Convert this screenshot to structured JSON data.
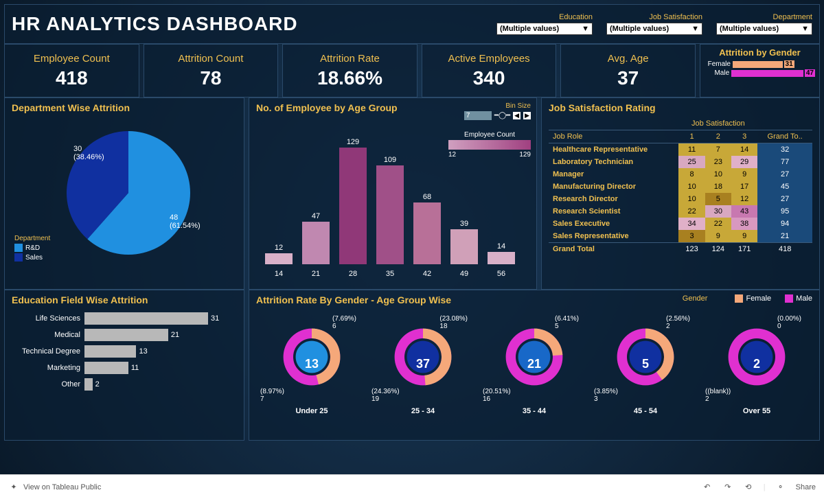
{
  "title": "HR ANALYTICS DASHBOARD",
  "filters": [
    {
      "label": "Education",
      "value": "(Multiple values)"
    },
    {
      "label": "Job Satisfaction",
      "value": "(Multiple values)"
    },
    {
      "label": "Department",
      "value": "(Multiple values)"
    }
  ],
  "kpis": [
    {
      "label": "Employee Count",
      "value": "418"
    },
    {
      "label": "Attrition Count",
      "value": "78"
    },
    {
      "label": "Attrition Rate",
      "value": "18.66%"
    },
    {
      "label": "Active Employees",
      "value": "340"
    },
    {
      "label": "Avg. Age",
      "value": "37"
    }
  ],
  "gender": {
    "title": "Attrition by Gender",
    "rows": [
      {
        "label": "Female",
        "value": 31,
        "color": "#f5a87a",
        "max": 47
      },
      {
        "label": "Male",
        "value": 47,
        "color": "#e030d0",
        "max": 47
      }
    ]
  },
  "pie": {
    "title": "Department Wise Attrition",
    "legend_title": "Department",
    "slices": [
      {
        "label": "R&D",
        "value": 48,
        "pct": "61.54%",
        "color": "#2090e0"
      },
      {
        "label": "Sales",
        "value": 30,
        "pct": "38.46%",
        "color": "#1030a0"
      }
    ]
  },
  "age_bars": {
    "title": "No. of Employee by Age Group",
    "bin_label": "Bin Size",
    "bin_value": "7",
    "legend_title": "Employee Count",
    "legend_min": "12",
    "legend_max": "129",
    "max": 129,
    "bars": [
      {
        "cat": "14",
        "value": 12,
        "color": "#d8b0c8"
      },
      {
        "cat": "21",
        "value": 47,
        "color": "#c088b0"
      },
      {
        "cat": "28",
        "value": 129,
        "color": "#903878"
      },
      {
        "cat": "35",
        "value": 109,
        "color": "#a05088"
      },
      {
        "cat": "42",
        "value": 68,
        "color": "#b87098"
      },
      {
        "cat": "49",
        "value": 39,
        "color": "#d0a0b8"
      },
      {
        "cat": "56",
        "value": 14,
        "color": "#d8b0c8"
      }
    ]
  },
  "satisfaction": {
    "title": "Job Satisfaction Rating",
    "super_header": "Job Satisfaction",
    "col_role": "Job Role",
    "cols": [
      "1",
      "2",
      "3"
    ],
    "col_total": "Grand To..",
    "rows": [
      {
        "role": "Healthcare Representative",
        "v": [
          11,
          7,
          14
        ],
        "c": [
          "#c8a838",
          "#c8a838",
          "#c8a838"
        ],
        "t": 32
      },
      {
        "role": "Laboratory Technician",
        "v": [
          25,
          23,
          29
        ],
        "c": [
          "#d8a8c0",
          "#c8a838",
          "#e0b0c8"
        ],
        "t": 77
      },
      {
        "role": "Manager",
        "v": [
          8,
          10,
          9
        ],
        "c": [
          "#c8a838",
          "#c8a838",
          "#c8a838"
        ],
        "t": 27
      },
      {
        "role": "Manufacturing Director",
        "v": [
          10,
          18,
          17
        ],
        "c": [
          "#c8a838",
          "#c8a838",
          "#c8a838"
        ],
        "t": 45
      },
      {
        "role": "Research Director",
        "v": [
          10,
          5,
          12
        ],
        "c": [
          "#c8a838",
          "#a88020",
          "#c8a838"
        ],
        "t": 27
      },
      {
        "role": "Research Scientist",
        "v": [
          22,
          30,
          43
        ],
        "c": [
          "#c8a838",
          "#d8a8c0",
          "#c878b0"
        ],
        "t": 95
      },
      {
        "role": "Sales Executive",
        "v": [
          34,
          22,
          38
        ],
        "c": [
          "#e0b0c8",
          "#c8a838",
          "#d898c0"
        ],
        "t": 94
      },
      {
        "role": "Sales Representative",
        "v": [
          3,
          9,
          9
        ],
        "c": [
          "#a88020",
          "#c8a838",
          "#c8a838"
        ],
        "t": 21
      }
    ],
    "grand_label": "Grand Total",
    "grand": [
      123,
      124,
      171,
      418
    ]
  },
  "education": {
    "title": "Education Field Wise  Attrition",
    "max": 31,
    "rows": [
      {
        "label": "Life Sciences",
        "value": 31
      },
      {
        "label": "Medical",
        "value": 21
      },
      {
        "label": "Technical Degree",
        "value": 13
      },
      {
        "label": "Marketing",
        "value": 11
      },
      {
        "label": "Other",
        "value": 2
      }
    ]
  },
  "donuts": {
    "title": "Attrition Rate By Gender - Age Group Wise",
    "legend_label": "Gender",
    "legend": [
      {
        "label": "Female",
        "color": "#f5a87a"
      },
      {
        "label": "Male",
        "color": "#e030d0"
      }
    ],
    "groups": [
      {
        "label": "Under 25",
        "total": 13,
        "female": {
          "n": 6,
          "pct": "7.69%"
        },
        "male": {
          "n": 7,
          "pct": "8.97%"
        },
        "f_deg": 166,
        "center_color": "#2090e0"
      },
      {
        "label": "25 - 34",
        "total": 37,
        "female": {
          "n": 18,
          "pct": "23.08%"
        },
        "male": {
          "n": 19,
          "pct": "24.36%"
        },
        "f_deg": 175,
        "center_color": "#1030a0"
      },
      {
        "label": "35 - 44",
        "total": 21,
        "female": {
          "n": 5,
          "pct": "6.41%"
        },
        "male": {
          "n": 16,
          "pct": "20.51%"
        },
        "f_deg": 86,
        "center_color": "#1868c8"
      },
      {
        "label": "45 - 54",
        "total": 5,
        "female": {
          "n": 2,
          "pct": "2.56%"
        },
        "male": {
          "n": 3,
          "pct": "3.85%"
        },
        "f_deg": 144,
        "center_color": "#1030a0"
      },
      {
        "label": "Over 55",
        "total": 2,
        "female": {
          "n": 0,
          "pct": "0.00%"
        },
        "male": {
          "n": 2,
          "pct": "(blank)"
        },
        "f_deg": 0,
        "center_color": "#1030a0"
      }
    ]
  },
  "footer": {
    "view": "View on Tableau Public",
    "share": "Share"
  }
}
